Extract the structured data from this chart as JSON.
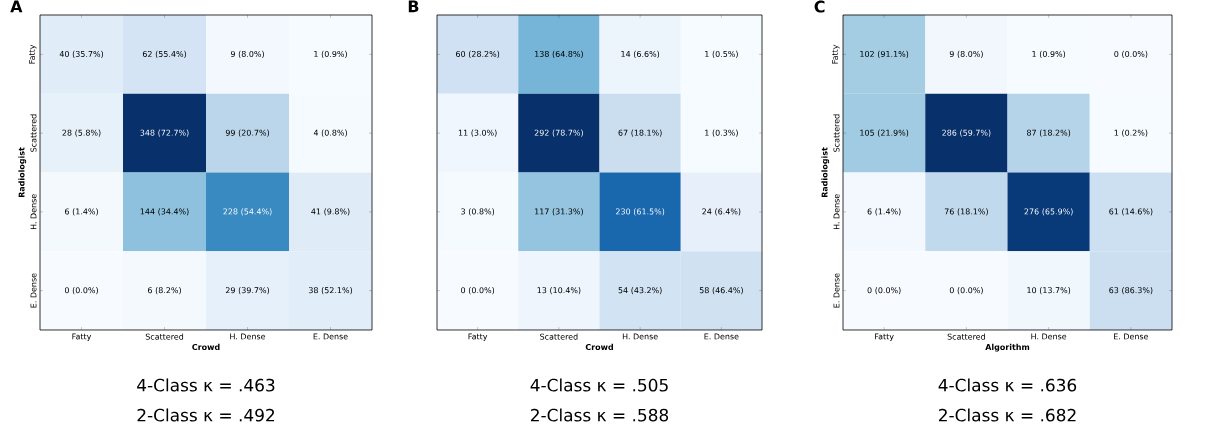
{
  "chart_data": [
    {
      "type": "heatmap",
      "title": "A",
      "xlabel": "Crowd",
      "ylabel": "Radiologist",
      "data_labels": true,
      "categories": [
        "Fatty",
        "Scattered",
        "H. Dense",
        "E. Dense"
      ],
      "y_categories": [
        "Fatty",
        "Scattered",
        "H. Dense",
        "E. Dense"
      ],
      "cells": [
        [
          40,
          62,
          9,
          1
        ],
        [
          28,
          348,
          99,
          4
        ],
        [
          6,
          144,
          228,
          41
        ],
        [
          0,
          6,
          29,
          38
        ]
      ],
      "annotations": [
        "4-Class κ = .463",
        "2-Class κ = .492",
        "(35.7%)",
        "(55.4%)",
        "(8.0%)",
        "(0.9%)",
        "(5.8%)",
        "(72.7%)",
        "(20.7%)",
        "(0.8%)",
        "(1.4%)",
        "(34.4%)",
        "(54.4%)",
        "(9.8%)",
        "(0.0%)",
        "(8.2%)",
        "(39.7%)",
        "(52.1%)"
      ]
    },
    {
      "type": "heatmap",
      "title": "B",
      "xlabel": "Crowd",
      "tick_labels": "x",
      "data_labels": true,
      "categories": [
        "Fatty",
        "Scattered",
        "H. Dense",
        "E. Dense"
      ],
      "y_categories": [
        null,
        null,
        null,
        null
      ],
      "cells": [
        [
          60,
          138,
          14,
          1
        ],
        [
          11,
          292,
          67,
          1
        ],
        [
          3,
          117,
          230,
          24
        ],
        [
          0,
          13,
          54,
          58
        ]
      ],
      "annotations": [
        "4-Class κ = .505",
        "2-Class κ = .588",
        "(28.2%)",
        "(64.8%)",
        "(6.6%)",
        "(0.5%)",
        "(3.0%)",
        "(78.7%)",
        "(18.1%)",
        "(0.3%)",
        "(0.8%)",
        "(31.3%)",
        "(61.5%)",
        "(6.4%)",
        "(0.0%)",
        "(10.4%)",
        "(43.2%)",
        "(46.4%)"
      ]
    },
    {
      "type": "heatmap",
      "title": "C",
      "xlabel": "Algorithm",
      "ylabel": "Radiologist",
      "data_labels": true,
      "categories": [
        "Fatty",
        "Scattered",
        "H. Dense",
        "E. Dense"
      ],
      "y_categories": [
        "Fatty",
        "Scattered",
        "H. Dense",
        "E. Dense"
      ],
      "cells": [
        [
          102,
          9,
          1,
          0
        ],
        [
          105,
          286,
          87,
          1
        ],
        [
          6,
          76,
          276,
          61
        ],
        [
          0,
          0,
          10,
          63
        ]
      ],
      "annotations": [
        "4-Class κ = .636",
        "2-Class κ = .682",
        "(91.1%)",
        "(8.0%)",
        "(0.9%)",
        "(0.0%)",
        "(21.9%)",
        "(59.7%)",
        "(18.2%)",
        "(0.2%)",
        "(1.4%)",
        "(18.1%)",
        "(65.9%)",
        "(14.6%)",
        "(0.0%)",
        "(0.0%)",
        "(13.7%)",
        "(86.3%)"
      ]
    }
  ]
}
